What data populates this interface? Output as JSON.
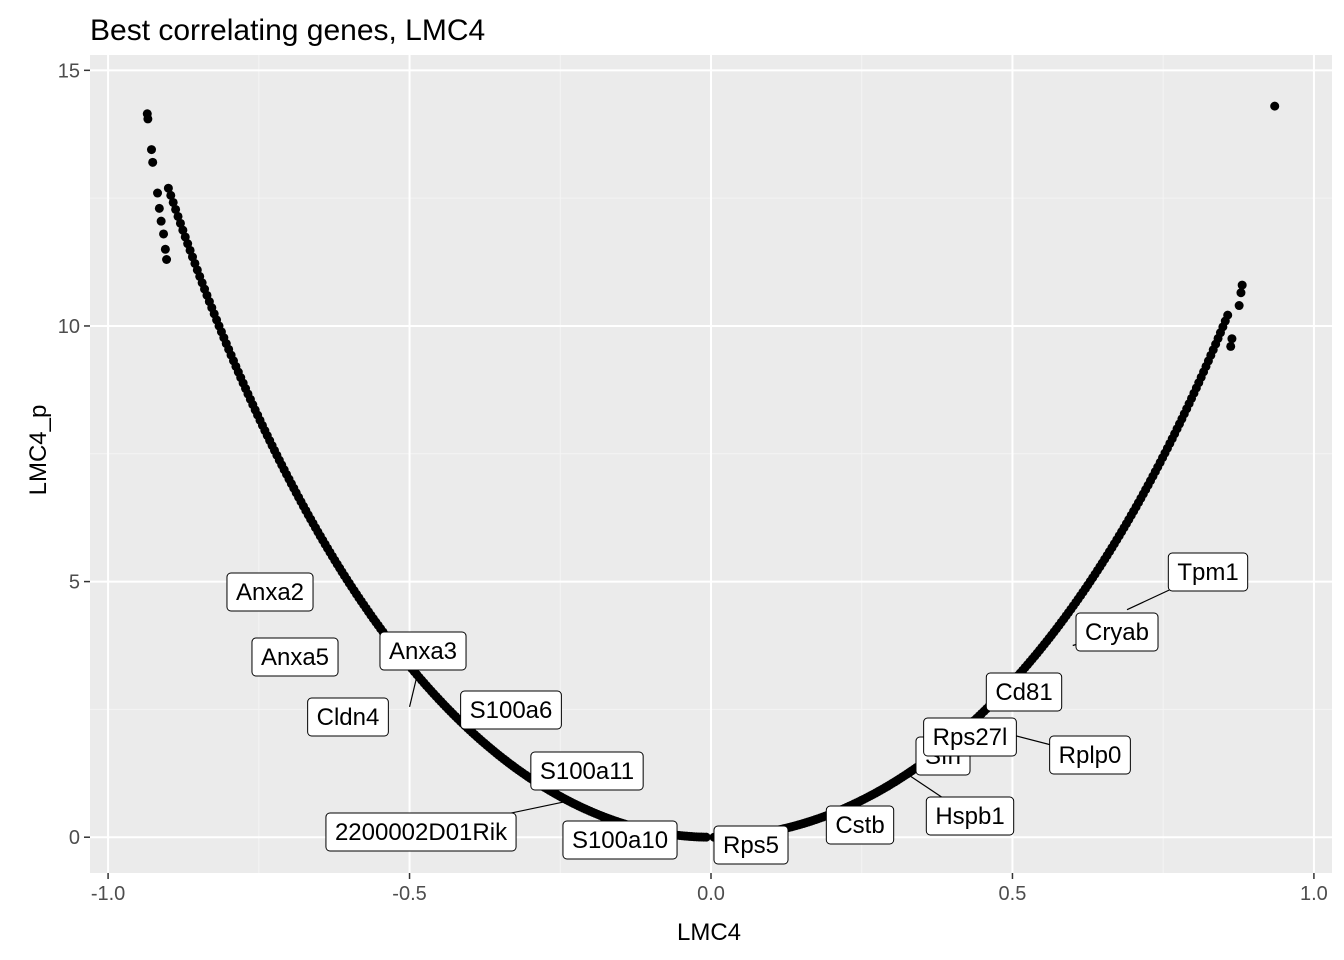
{
  "chart_data": {
    "type": "scatter",
    "title": "Best correlating genes, LMC4",
    "xlabel": "LMC4",
    "ylabel": "LMC4_p",
    "xlim": [
      -1.03,
      1.03
    ],
    "ylim": [
      -0.7,
      15.3
    ],
    "x_ticks": [
      -1.0,
      -0.5,
      0.0,
      0.5,
      1.0
    ],
    "x_tick_labels": [
      "-1.0",
      "-0.5",
      "0.0",
      "0.5",
      "1.0"
    ],
    "y_ticks": [
      0,
      5,
      10,
      15
    ],
    "y_tick_labels": [
      "0",
      "5",
      "10",
      "15"
    ],
    "grid": true,
    "panel_background": "#ebebeb",
    "point_color": "#000000",
    "curve_shape_note_values": {
      "neg_branch_x_range": [
        -0.94,
        0.0
      ],
      "pos_branch_x_range": [
        0.0,
        0.89
      ]
    },
    "points": [
      {
        "x": -0.935,
        "y": 14.15
      },
      {
        "x": -0.934,
        "y": 14.05
      },
      {
        "x": -0.928,
        "y": 13.45
      },
      {
        "x": -0.926,
        "y": 13.2
      },
      {
        "x": -0.918,
        "y": 12.6
      },
      {
        "x": -0.915,
        "y": 12.3
      },
      {
        "x": -0.912,
        "y": 12.05
      },
      {
        "x": -0.908,
        "y": 11.8
      },
      {
        "x": -0.905,
        "y": 11.5
      },
      {
        "x": -0.903,
        "y": 11.3
      },
      {
        "x": 0.935,
        "y": 14.3
      },
      {
        "x": 0.881,
        "y": 10.8
      },
      {
        "x": 0.879,
        "y": 10.65
      },
      {
        "x": 0.876,
        "y": 10.4
      },
      {
        "x": 0.864,
        "y": 9.75
      },
      {
        "x": 0.862,
        "y": 9.6
      }
    ],
    "labels": [
      {
        "text": "Anxa2",
        "x": -0.69,
        "y": 5.07
      },
      {
        "text": "Anxa5",
        "x": -0.69,
        "y": 3.85
      },
      {
        "text": "Anxa3",
        "x": -0.5,
        "y": 2.55
      },
      {
        "text": "Cldn4",
        "x": -0.59,
        "y": 2.25
      },
      {
        "text": "S100a6",
        "x": -0.39,
        "y": 2.35
      },
      {
        "text": "S100a11",
        "x": -0.25,
        "y": 1.3
      },
      {
        "text": "2200002D01Rik",
        "x": -0.24,
        "y": 0.7
      },
      {
        "text": "S100a10",
        "x": -0.04,
        "y": 0.05
      },
      {
        "text": "Rps5",
        "x": 0.04,
        "y": 0.03
      },
      {
        "text": "Cstb",
        "x": 0.21,
        "y": 0.42
      },
      {
        "text": "Sfn",
        "x": 0.34,
        "y": 1.3
      },
      {
        "text": "Hspb1",
        "x": 0.33,
        "y": 1.2
      },
      {
        "text": "Rps27l",
        "x": 0.42,
        "y": 1.85
      },
      {
        "text": "Rplp0",
        "x": 0.5,
        "y": 2.0
      },
      {
        "text": "Cd81",
        "x": 0.5,
        "y": 2.55
      },
      {
        "text": "Cryab",
        "x": 0.6,
        "y": 3.75
      },
      {
        "text": "Tpm1",
        "x": 0.69,
        "y": 4.45
      }
    ]
  }
}
